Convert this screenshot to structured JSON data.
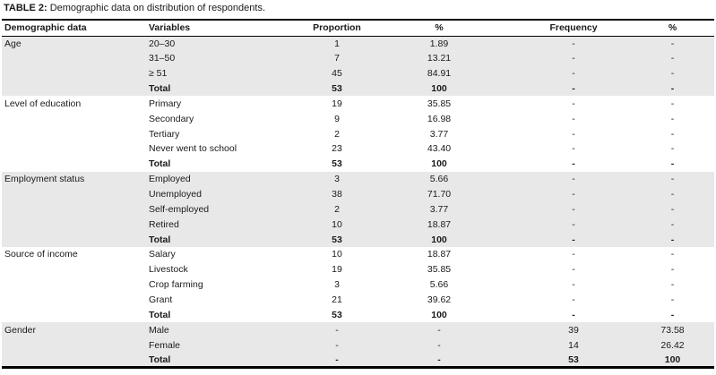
{
  "title": {
    "label": "TABLE 2:",
    "rest": "Demographic data on distribution of respondents."
  },
  "colors": {
    "shaded_row": "#e8e8e8",
    "rule": "#000000",
    "text": "#1a1a1a",
    "background": "#ffffff"
  },
  "table": {
    "columns": [
      "Demographic data",
      "Variables",
      "Proportion",
      "%",
      "Frequency",
      "%"
    ],
    "sections": [
      {
        "category": "Age",
        "shaded": true,
        "rows": [
          {
            "variable": "20–30",
            "proportion": "1",
            "pct": "1.89",
            "frequency": "-",
            "pct2": "-",
            "total": false
          },
          {
            "variable": "31–50",
            "proportion": "7",
            "pct": "13.21",
            "frequency": "-",
            "pct2": "-",
            "total": false
          },
          {
            "variable": "≥ 51",
            "proportion": "45",
            "pct": "84.91",
            "frequency": "-",
            "pct2": "-",
            "total": false
          },
          {
            "variable": "Total",
            "proportion": "53",
            "pct": "100",
            "frequency": "-",
            "pct2": "-",
            "total": true
          }
        ]
      },
      {
        "category": "Level of education",
        "shaded": false,
        "rows": [
          {
            "variable": "Primary",
            "proportion": "19",
            "pct": "35.85",
            "frequency": "-",
            "pct2": "-",
            "total": false
          },
          {
            "variable": "Secondary",
            "proportion": "9",
            "pct": "16.98",
            "frequency": "-",
            "pct2": "-",
            "total": false
          },
          {
            "variable": "Tertiary",
            "proportion": "2",
            "pct": "3.77",
            "frequency": "-",
            "pct2": "-",
            "total": false
          },
          {
            "variable": "Never went to school",
            "proportion": "23",
            "pct": "43.40",
            "frequency": "-",
            "pct2": "-",
            "total": false
          },
          {
            "variable": "Total",
            "proportion": "53",
            "pct": "100",
            "frequency": "-",
            "pct2": "-",
            "total": true
          }
        ]
      },
      {
        "category": "Employment status",
        "shaded": true,
        "rows": [
          {
            "variable": "Employed",
            "proportion": "3",
            "pct": "5.66",
            "frequency": "-",
            "pct2": "-",
            "total": false
          },
          {
            "variable": "Unemployed",
            "proportion": "38",
            "pct": "71.70",
            "frequency": "-",
            "pct2": "-",
            "total": false
          },
          {
            "variable": "Self-employed",
            "proportion": "2",
            "pct": "3.77",
            "frequency": "-",
            "pct2": "-",
            "total": false
          },
          {
            "variable": "Retired",
            "proportion": "10",
            "pct": "18.87",
            "frequency": "-",
            "pct2": "-",
            "total": false
          },
          {
            "variable": "Total",
            "proportion": "53",
            "pct": "100",
            "frequency": "-",
            "pct2": "-",
            "total": true
          }
        ]
      },
      {
        "category": "Source of income",
        "shaded": false,
        "rows": [
          {
            "variable": "Salary",
            "proportion": "10",
            "pct": "18.87",
            "frequency": "-",
            "pct2": "-",
            "total": false
          },
          {
            "variable": "Livestock",
            "proportion": "19",
            "pct": "35.85",
            "frequency": "-",
            "pct2": "-",
            "total": false
          },
          {
            "variable": "Crop farming",
            "proportion": "3",
            "pct": "5.66",
            "frequency": "-",
            "pct2": "-",
            "total": false
          },
          {
            "variable": "Grant",
            "proportion": "21",
            "pct": "39.62",
            "frequency": "-",
            "pct2": "-",
            "total": false
          },
          {
            "variable": "Total",
            "proportion": "53",
            "pct": "100",
            "frequency": "-",
            "pct2": "-",
            "total": true
          }
        ]
      },
      {
        "category": "Gender",
        "shaded": true,
        "rows": [
          {
            "variable": "Male",
            "proportion": "-",
            "pct": "-",
            "frequency": "39",
            "pct2": "73.58",
            "total": false
          },
          {
            "variable": "Female",
            "proportion": "-",
            "pct": "-",
            "frequency": "14",
            "pct2": "26.42",
            "total": false
          },
          {
            "variable": "Total",
            "proportion": "-",
            "pct": "-",
            "frequency": "53",
            "pct2": "100",
            "total": true
          }
        ]
      }
    ]
  }
}
